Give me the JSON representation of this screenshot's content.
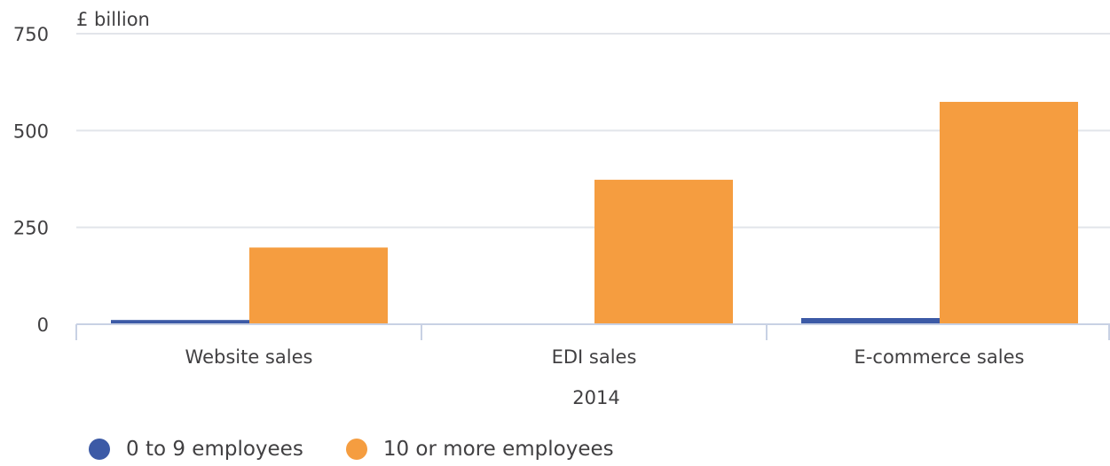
{
  "chart_data": {
    "type": "bar",
    "ylabel": "£ billion",
    "xlabel": "2014",
    "ylim": [
      0,
      750
    ],
    "yticks": [
      0,
      250,
      500,
      750
    ],
    "categories": [
      "Website sales",
      "EDI sales",
      "E-commerce sales"
    ],
    "series": [
      {
        "name": "0 to 9 employees",
        "color": "#3c5aa6",
        "values": [
          11,
          1,
          16
        ]
      },
      {
        "name": "10 or more employees",
        "color": "#f59d40",
        "values": [
          198,
          373,
          574
        ]
      }
    ],
    "grid": true,
    "legend_position": "bottom-left"
  }
}
